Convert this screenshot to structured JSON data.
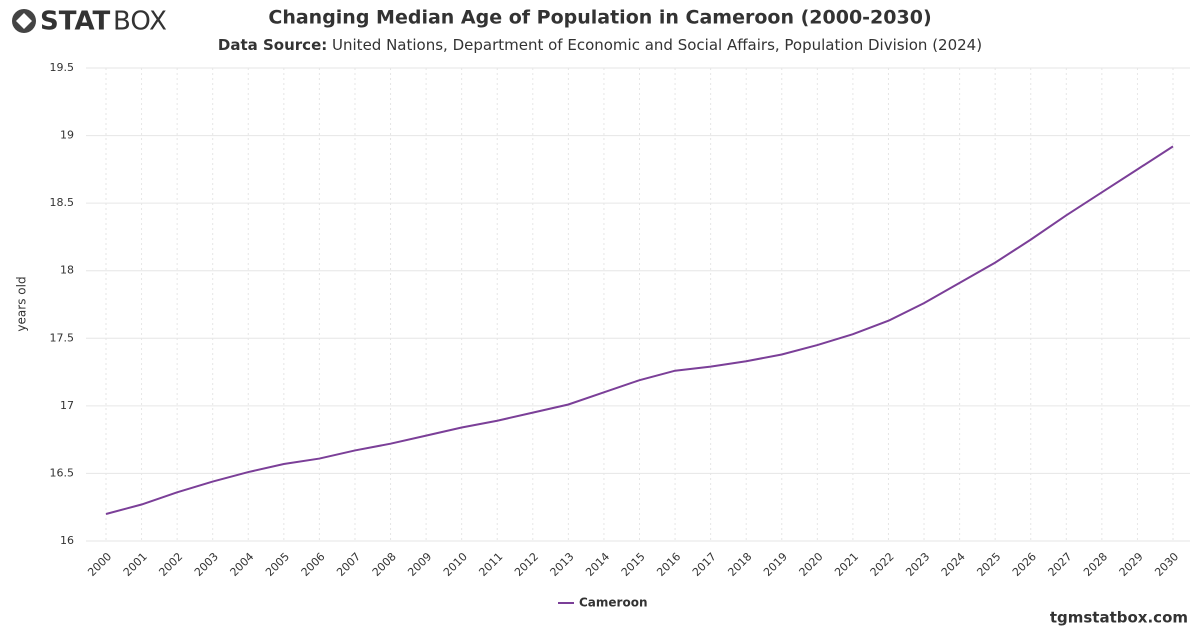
{
  "brand": {
    "bold": "STAT",
    "light": "BOX"
  },
  "footer": "tgmstatbox.com",
  "chart_data": {
    "type": "line",
    "title": "Changing Median Age of Population in Cameroon (2000-2030)",
    "subtitle_label": "Data Source:",
    "subtitle": "United Nations, Department of Economic and Social Affairs, Population Division (2024)",
    "y_label": "years old",
    "x": [
      2000,
      2001,
      2002,
      2003,
      2004,
      2005,
      2006,
      2007,
      2008,
      2009,
      2010,
      2011,
      2012,
      2013,
      2014,
      2015,
      2016,
      2017,
      2018,
      2019,
      2020,
      2021,
      2022,
      2023,
      2024,
      2025,
      2026,
      2027,
      2028,
      2029,
      2030
    ],
    "xlim": [
      2000,
      2030
    ],
    "series": [
      {
        "name": "Cameroon",
        "color": "#7b3f98",
        "values": [
          16.2,
          16.27,
          16.36,
          16.44,
          16.51,
          16.57,
          16.61,
          16.67,
          16.72,
          16.78,
          16.84,
          16.89,
          16.95,
          17.01,
          17.1,
          17.19,
          17.26,
          17.29,
          17.33,
          17.38,
          17.45,
          17.53,
          17.63,
          17.76,
          17.91,
          18.06,
          18.23,
          18.41,
          18.58,
          18.75,
          18.92
        ]
      }
    ],
    "ylim": [
      16,
      19.5
    ],
    "yticks": [
      16,
      16.5,
      17,
      17.5,
      18,
      18.5,
      19,
      19.5
    ],
    "grid": true
  }
}
